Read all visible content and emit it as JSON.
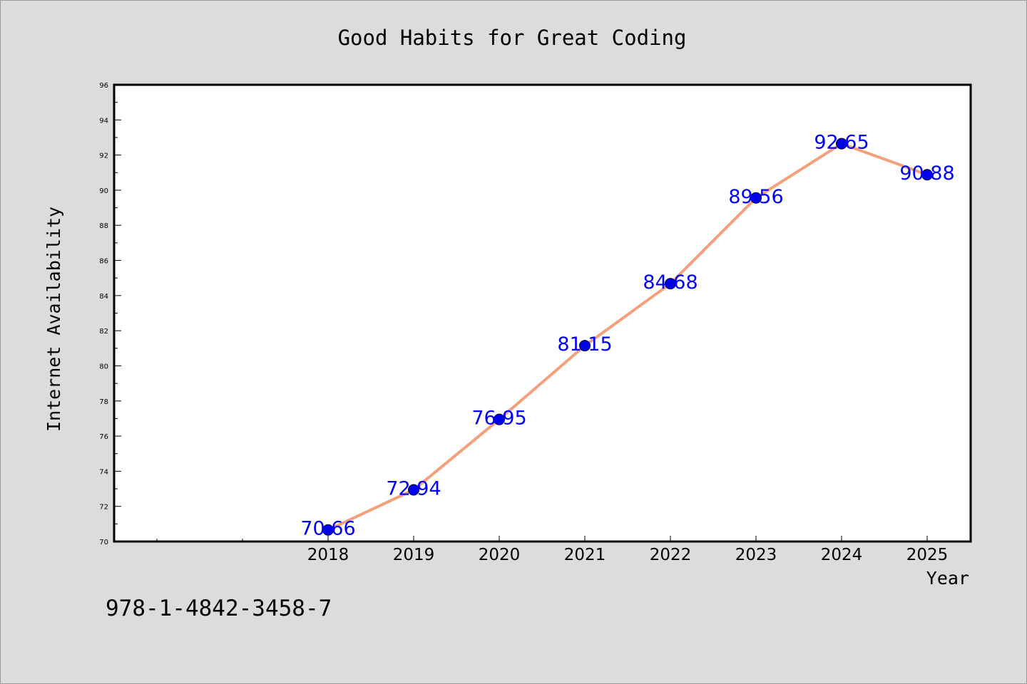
{
  "chart_data": {
    "type": "line",
    "title": "Good Habits for Great Coding",
    "xlabel": "Year",
    "ylabel": "Internet Availability",
    "categories": [
      "2018",
      "2019",
      "2020",
      "2021",
      "2022",
      "2023",
      "2024",
      "2025"
    ],
    "series": [
      {
        "values": [
          70.66,
          72.94,
          76.95,
          81.15,
          84.68,
          89.56,
          92.65,
          90.88
        ]
      }
    ],
    "data_labels": [
      "70.66",
      "72.94",
      "76.95",
      "81.15",
      "84.68",
      "89.56",
      "92.65",
      "90.88"
    ],
    "ylim": [
      70,
      96
    ],
    "yticks": [
      70,
      72,
      74,
      76,
      78,
      80,
      82,
      84,
      86,
      88,
      90,
      92,
      94,
      96
    ],
    "grid": false,
    "legend": "none",
    "colors": {
      "line": "#f4a07c",
      "marker": "#0000ee",
      "data_label": "#0000ff",
      "plot_background": "#ffffff",
      "page_background": "#dcdcdc"
    }
  },
  "footer": {
    "isbn": "978-1-4842-3458-7"
  }
}
